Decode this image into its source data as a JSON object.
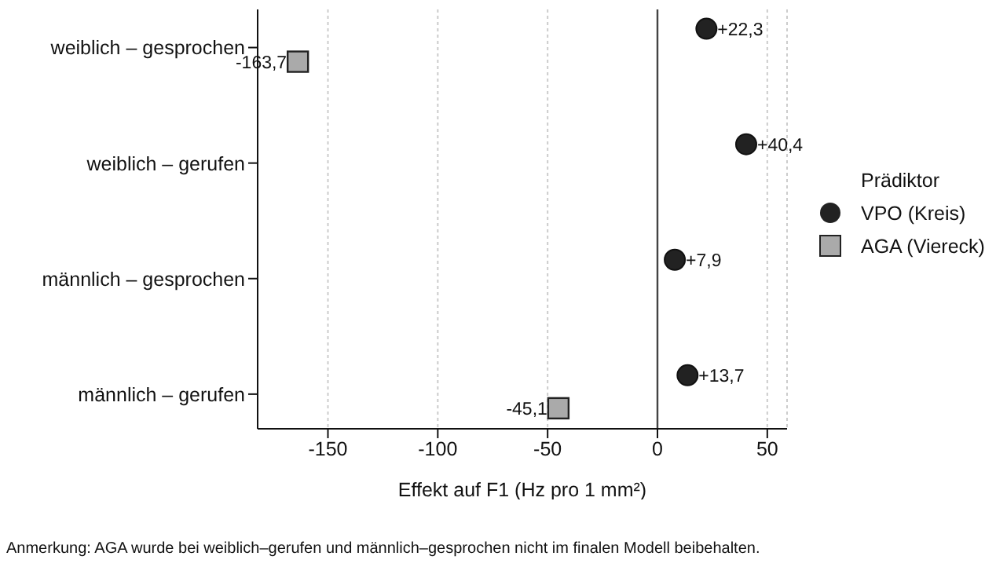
{
  "chart_data": {
    "type": "scatter",
    "orientation": "horizontal",
    "xlabel": "Effekt auf F1 (Hz pro 1 mm²)",
    "legend_title": "Prädiktor",
    "categories": [
      "weiblich – gesprochen",
      "weiblich – gerufen",
      "männlich – gesprochen",
      "männlich – gerufen"
    ],
    "series": [
      {
        "name": "VPO (Kreis)",
        "color": "#222222",
        "marker": "circle",
        "values": [
          22.3,
          40.4,
          7.9,
          13.7
        ],
        "value_labels": [
          "+22,3",
          "+40,4",
          "+7,9",
          "+13,7"
        ]
      },
      {
        "name": "AGA (Viereck)",
        "color": "#aaaaaa",
        "marker": "square",
        "values": [
          -163.7,
          null,
          null,
          -45.1
        ],
        "value_labels": [
          "-163,7",
          null,
          null,
          "-45,1"
        ]
      }
    ],
    "xlim": [
      -182,
      59
    ],
    "xticks": [
      -150,
      -100,
      -50,
      0,
      50
    ],
    "grid": "x",
    "legend": "right",
    "ref_lines": [
      {
        "axis": "x",
        "value": 0,
        "color": "#444444",
        "line_style": "solid"
      }
    ],
    "annotations": [
      "Anmerkung: AGA wurde bei weiblich–gerufen und männlich–gesprochen nicht im finalen Modell beibehalten."
    ]
  }
}
